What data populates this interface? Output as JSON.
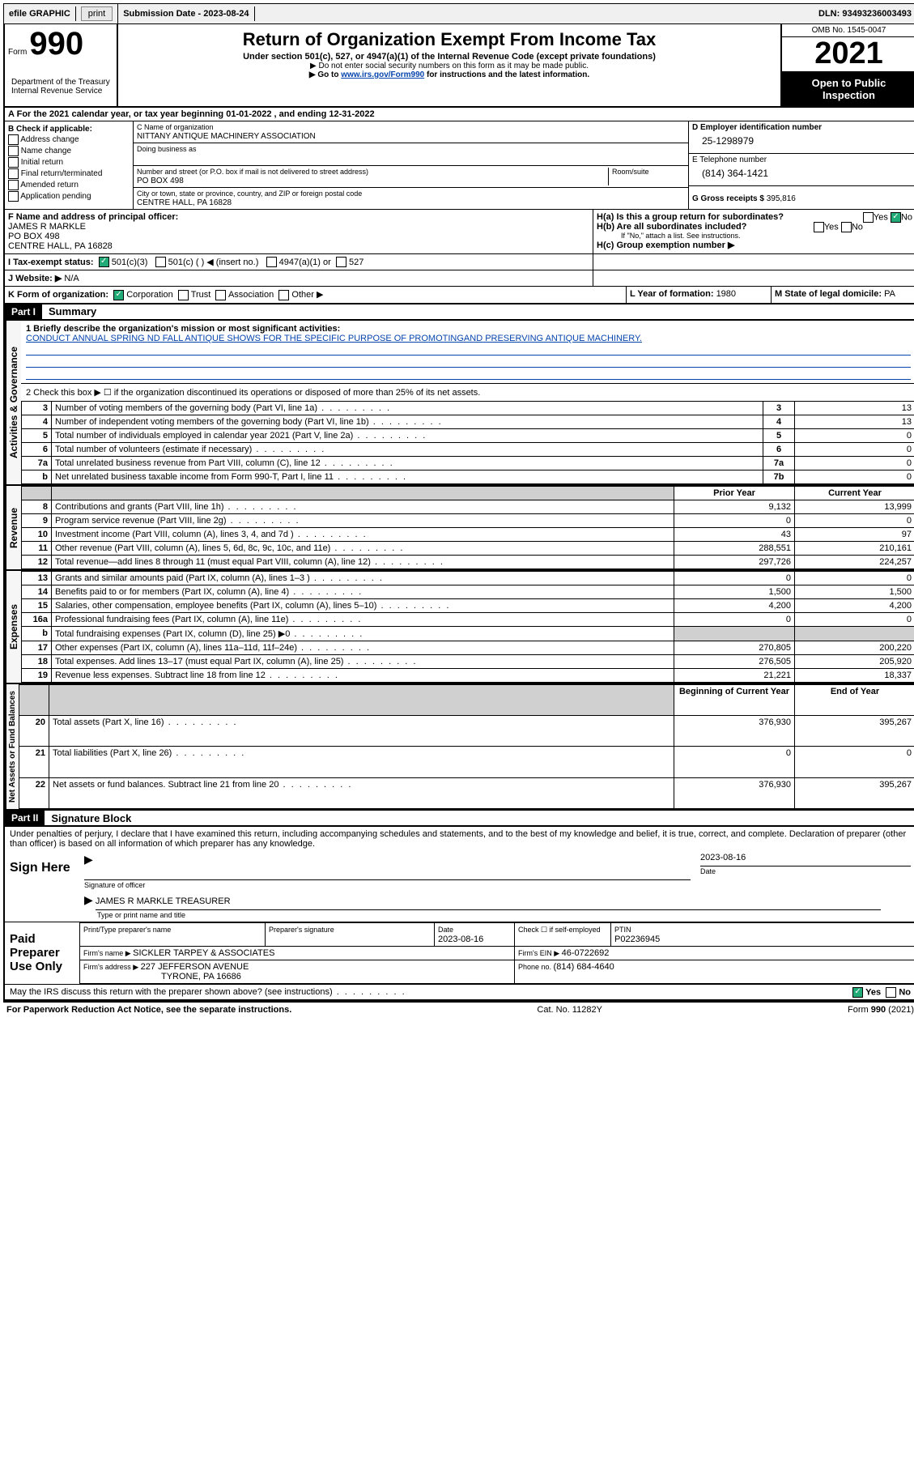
{
  "topbar": {
    "efile": "efile GRAPHIC",
    "print": "print",
    "submission_label": "Submission Date - ",
    "submission_date": "2023-08-24",
    "dln_label": "DLN: ",
    "dln": "93493236003493"
  },
  "header": {
    "form_label": "Form",
    "form_number": "990",
    "title": "Return of Organization Exempt From Income Tax",
    "subtitle": "Under section 501(c), 527, or 4947(a)(1) of the Internal Revenue Code (except private foundations)",
    "note1": "▶ Do not enter social security numbers on this form as it may be made public.",
    "note2_pre": "▶ Go to ",
    "note2_link": "www.irs.gov/Form990",
    "note2_post": " for instructions and the latest information.",
    "dept": "Department of the Treasury\nInternal Revenue Service",
    "omb": "OMB No. 1545-0047",
    "year": "2021",
    "open": "Open to Public Inspection"
  },
  "line_a": {
    "text_pre": "For the 2021 calendar year, or tax year beginning ",
    "begin": "01-01-2022",
    "mid": " , and ending ",
    "end": "12-31-2022"
  },
  "section_b": {
    "label": "B Check if applicable:",
    "items": [
      "Address change",
      "Name change",
      "Initial return",
      "Final return/terminated",
      "Amended return",
      "Application pending"
    ]
  },
  "section_c": {
    "label": "C Name of organization",
    "name": "NITTANY ANTIQUE MACHINERY ASSOCIATION",
    "dba_label": "Doing business as",
    "dba": "",
    "street_label": "Number and street (or P.O. box if mail is not delivered to street address)",
    "room_label": "Room/suite",
    "street": "PO BOX 498",
    "city_label": "City or town, state or province, country, and ZIP or foreign postal code",
    "city": "CENTRE HALL, PA  16828"
  },
  "section_d": {
    "label": "D Employer identification number",
    "ein": "25-1298979",
    "phone_label": "E Telephone number",
    "phone": "(814) 364-1421",
    "gross_label": "G Gross receipts $ ",
    "gross": "395,816"
  },
  "section_f": {
    "label": "F  Name and address of principal officer:",
    "name": "JAMES R MARKLE",
    "addr1": "PO BOX 498",
    "addr2": "CENTRE HALL, PA  16828"
  },
  "section_h": {
    "ha_label": "H(a)  Is this a group return for subordinates?",
    "ha_yes": "Yes",
    "ha_no": "No",
    "hb_label": "H(b)  Are all subordinates included?",
    "hb_yes": "Yes",
    "hb_no": "No",
    "hb_note": "If \"No,\" attach a list. See instructions.",
    "hc_label": "H(c)  Group exemption number ▶"
  },
  "section_i": {
    "label": "I  Tax-exempt status:",
    "opt1": "501(c)(3)",
    "opt2": "501(c) (  ) ◀ (insert no.)",
    "opt3": "4947(a)(1) or",
    "opt4": "527"
  },
  "section_j": {
    "label": "J  Website: ▶",
    "value": "N/A"
  },
  "section_k": {
    "label": "K Form of organization:",
    "opts": [
      "Corporation",
      "Trust",
      "Association",
      "Other ▶"
    ],
    "l_label": "L Year of formation: ",
    "l_val": "1980",
    "m_label": "M State of legal domicile: ",
    "m_val": "PA"
  },
  "part1": {
    "header": "Part I",
    "title": "Summary",
    "q1_label": "1  Briefly describe the organization's mission or most significant activities:",
    "q1_text": "CONDUCT ANNUAL SPRING ND FALL ANTIQUE SHOWS FOR THE SPECIFIC PURPOSE OF PROMOTINGAND PRESERVING ANTIQUE MACHINERY.",
    "q2": "2  Check this box ▶ ☐  if the organization discontinued its operations or disposed of more than 25% of its net assets.",
    "tabs": {
      "ag": "Activities & Governance",
      "rev": "Revenue",
      "exp": "Expenses",
      "na": "Net Assets or Fund Balances"
    },
    "rows_ag": [
      {
        "n": "3",
        "desc": "Number of voting members of the governing body (Part VI, line 1a)",
        "box": "3",
        "val": "13"
      },
      {
        "n": "4",
        "desc": "Number of independent voting members of the governing body (Part VI, line 1b)",
        "box": "4",
        "val": "13"
      },
      {
        "n": "5",
        "desc": "Total number of individuals employed in calendar year 2021 (Part V, line 2a)",
        "box": "5",
        "val": "0"
      },
      {
        "n": "6",
        "desc": "Total number of volunteers (estimate if necessary)",
        "box": "6",
        "val": "0"
      },
      {
        "n": "7a",
        "desc": "Total unrelated business revenue from Part VIII, column (C), line 12",
        "box": "7a",
        "val": "0"
      },
      {
        "n": "b",
        "desc": "Net unrelated business taxable income from Form 990-T, Part I, line 11",
        "box": "7b",
        "val": "0"
      }
    ],
    "cols": {
      "prior": "Prior Year",
      "current": "Current Year"
    },
    "rows_rev": [
      {
        "n": "8",
        "desc": "Contributions and grants (Part VIII, line 1h)",
        "prior": "9,132",
        "cur": "13,999"
      },
      {
        "n": "9",
        "desc": "Program service revenue (Part VIII, line 2g)",
        "prior": "0",
        "cur": "0"
      },
      {
        "n": "10",
        "desc": "Investment income (Part VIII, column (A), lines 3, 4, and 7d )",
        "prior": "43",
        "cur": "97"
      },
      {
        "n": "11",
        "desc": "Other revenue (Part VIII, column (A), lines 5, 6d, 8c, 9c, 10c, and 11e)",
        "prior": "288,551",
        "cur": "210,161"
      },
      {
        "n": "12",
        "desc": "Total revenue—add lines 8 through 11 (must equal Part VIII, column (A), line 12)",
        "prior": "297,726",
        "cur": "224,257"
      }
    ],
    "rows_exp": [
      {
        "n": "13",
        "desc": "Grants and similar amounts paid (Part IX, column (A), lines 1–3 )",
        "prior": "0",
        "cur": "0"
      },
      {
        "n": "14",
        "desc": "Benefits paid to or for members (Part IX, column (A), line 4)",
        "prior": "1,500",
        "cur": "1,500"
      },
      {
        "n": "15",
        "desc": "Salaries, other compensation, employee benefits (Part IX, column (A), lines 5–10)",
        "prior": "4,200",
        "cur": "4,200"
      },
      {
        "n": "16a",
        "desc": "Professional fundraising fees (Part IX, column (A), line 11e)",
        "prior": "0",
        "cur": "0"
      },
      {
        "n": "b",
        "desc": "Total fundraising expenses (Part IX, column (D), line 25) ▶0",
        "prior": "",
        "cur": ""
      },
      {
        "n": "17",
        "desc": "Other expenses (Part IX, column (A), lines 11a–11d, 11f–24e)",
        "prior": "270,805",
        "cur": "200,220"
      },
      {
        "n": "18",
        "desc": "Total expenses. Add lines 13–17 (must equal Part IX, column (A), line 25)",
        "prior": "276,505",
        "cur": "205,920"
      },
      {
        "n": "19",
        "desc": "Revenue less expenses. Subtract line 18 from line 12",
        "prior": "21,221",
        "cur": "18,337"
      }
    ],
    "cols_na": {
      "begin": "Beginning of Current Year",
      "end": "End of Year"
    },
    "rows_na": [
      {
        "n": "20",
        "desc": "Total assets (Part X, line 16)",
        "prior": "376,930",
        "cur": "395,267"
      },
      {
        "n": "21",
        "desc": "Total liabilities (Part X, line 26)",
        "prior": "0",
        "cur": "0"
      },
      {
        "n": "22",
        "desc": "Net assets or fund balances. Subtract line 21 from line 20",
        "prior": "376,930",
        "cur": "395,267"
      }
    ]
  },
  "part2": {
    "header": "Part II",
    "title": "Signature Block",
    "penalties": "Under penalties of perjury, I declare that I have examined this return, including accompanying schedules and statements, and to the best of my knowledge and belief, it is true, correct, and complete. Declaration of preparer (other than officer) is based on all information of which preparer has any knowledge.",
    "sign_here": "Sign Here",
    "sig_officer_label": "Signature of officer",
    "sig_date": "2023-08-16",
    "date_label": "Date",
    "officer_name": "JAMES R MARKLE  TREASURER",
    "officer_name_label": "Type or print name and title",
    "paid": "Paid Preparer Use Only",
    "prep_name_label": "Print/Type preparer's name",
    "prep_sig_label": "Preparer's signature",
    "prep_date_label": "Date",
    "prep_date": "2023-08-16",
    "check_label": "Check ☐ if self-employed",
    "ptin_label": "PTIN",
    "ptin": "P02236945",
    "firm_name_label": "Firm's name   ▶ ",
    "firm_name": "SICKLER TARPEY & ASSOCIATES",
    "firm_ein_label": "Firm's EIN ▶ ",
    "firm_ein": "46-0722692",
    "firm_addr_label": "Firm's address ▶ ",
    "firm_addr1": "227 JEFFERSON AVENUE",
    "firm_addr2": "TYRONE, PA  16686",
    "firm_phone_label": "Phone no. ",
    "firm_phone": "(814) 684-4640",
    "discuss": "May the IRS discuss this return with the preparer shown above? (see instructions)",
    "discuss_yes": "Yes",
    "discuss_no": "No"
  },
  "footer": {
    "pra": "For Paperwork Reduction Act Notice, see the separate instructions.",
    "cat": "Cat. No. 11282Y",
    "form": "Form 990 (2021)"
  }
}
